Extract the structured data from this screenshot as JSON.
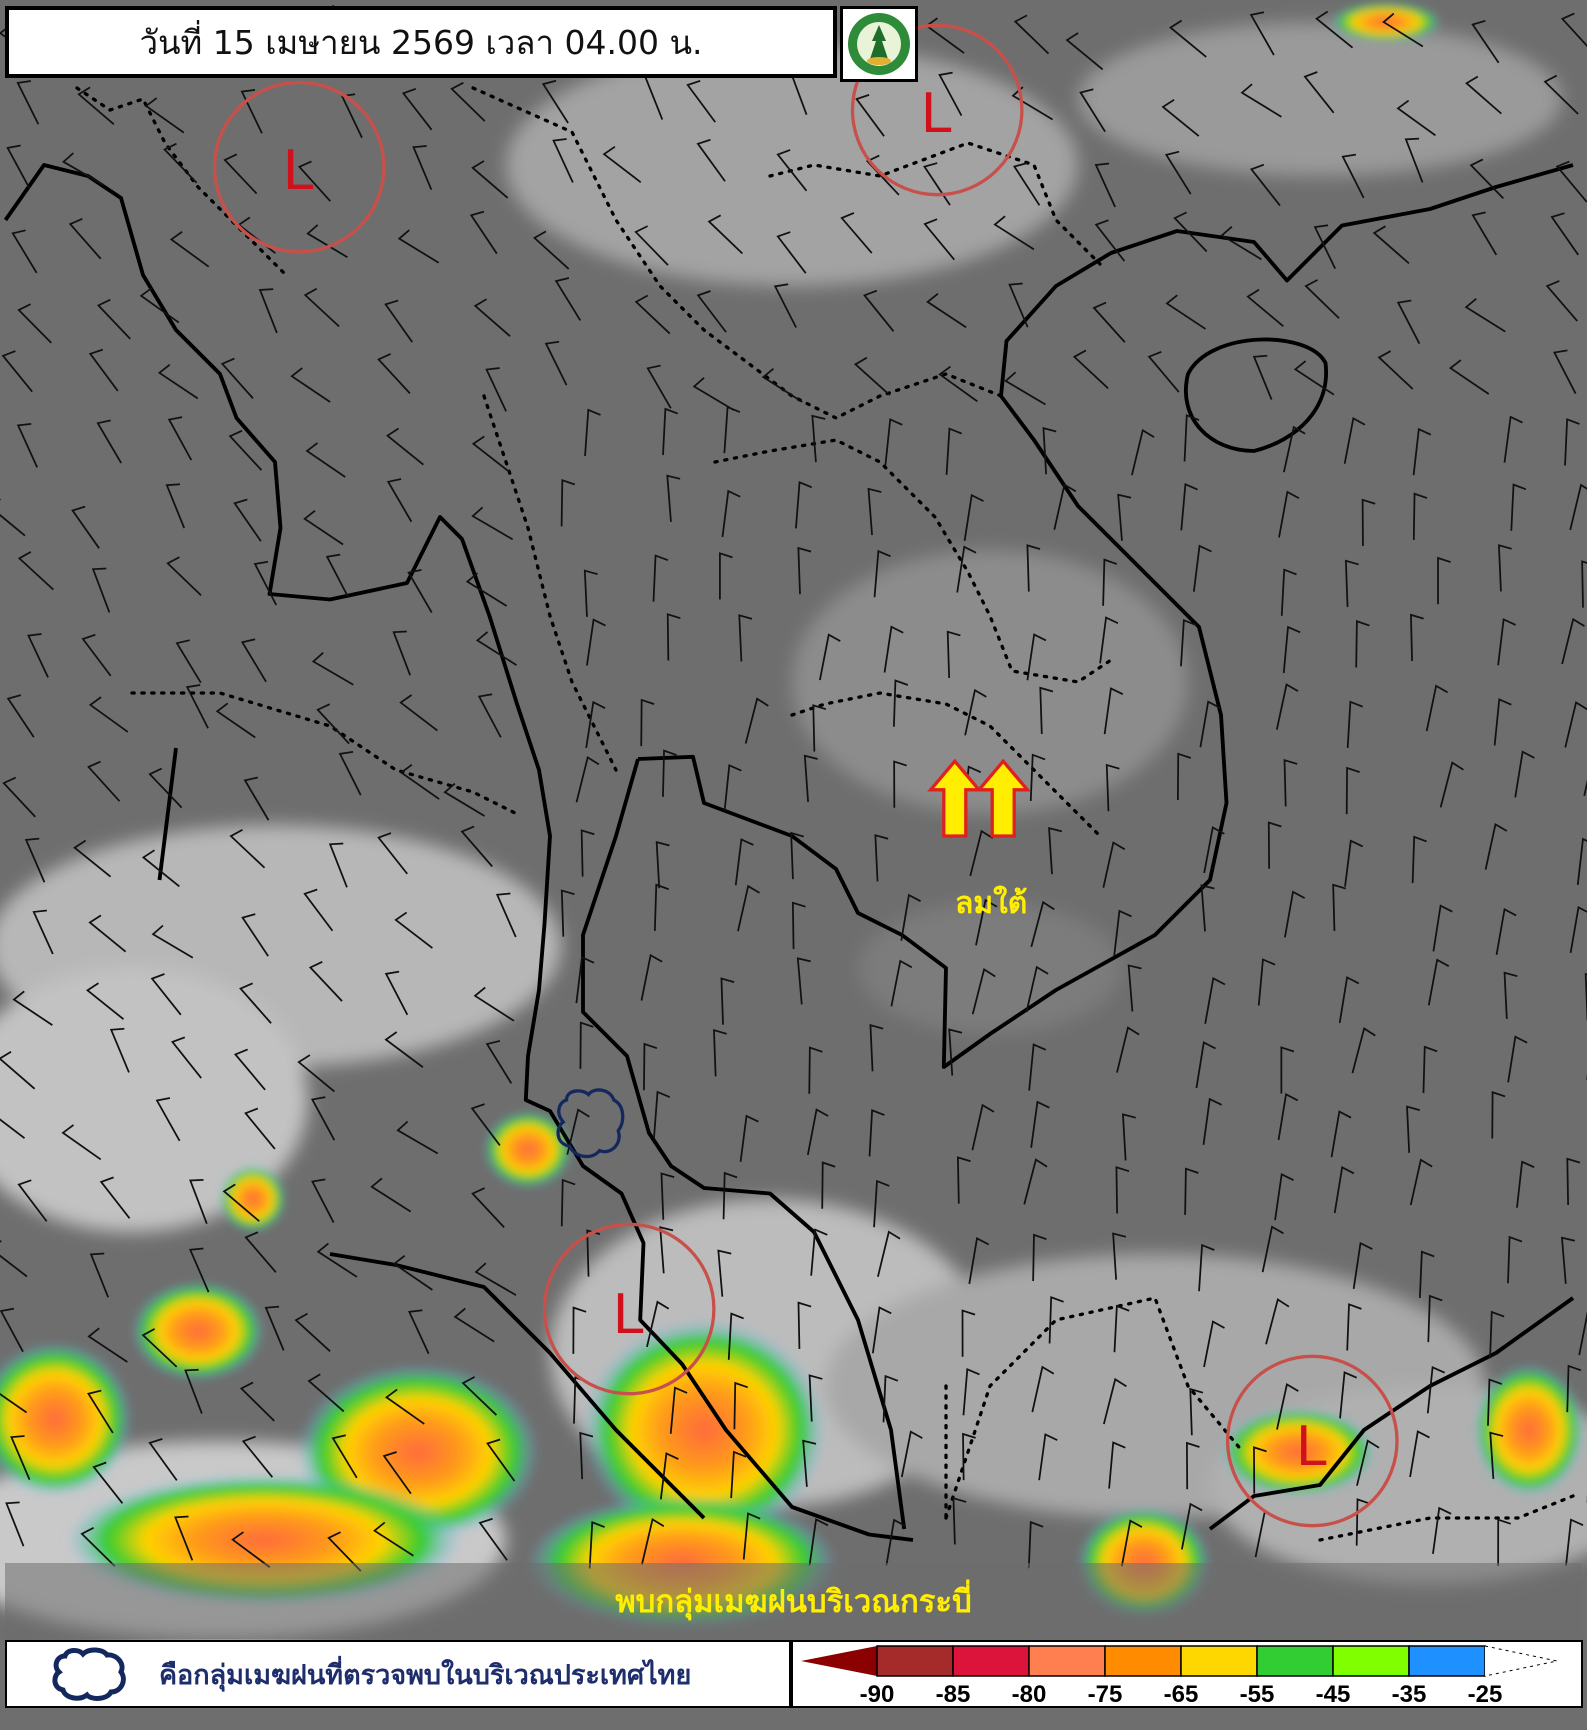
{
  "header": {
    "title": "วันที่ 15 เมษายน 2569 เวลา 04.00 น.",
    "logo": {
      "icon": "tmd-seal-logo",
      "lettering": "กรมอุตุนิยมวิทยา / THAI METEOROLOGICAL DEPARTMENT"
    }
  },
  "map": {
    "low_pressure_label": "L",
    "low_pressure_count": 4,
    "circle_color": "#c8504a",
    "low_label_color": "#d0101a",
    "wind_annotation": "ลมใต้",
    "wind_arrow_color": "#ffee00",
    "wind_arrow_outline": "#e02020",
    "rain_cloud_marker": "cloud-outline-icon"
  },
  "banner": {
    "text": "พบกลุ่มเมฆฝนบริเวณกระบี่"
  },
  "legend": {
    "cloud_icon": "cloud-outline-icon",
    "text": "คือกลุ่มเมฆฝนที่ตรวจพบในบริเวณประเทศไทย"
  },
  "color_scale": {
    "ticks": [
      "-90",
      "-85",
      "-80",
      "-75",
      "-65",
      "-55",
      "-45",
      "-35",
      "-25"
    ],
    "colors": [
      "#8b0000",
      "#a52a2a",
      "#dc143c",
      "#ff7f50",
      "#ff8c00",
      "#ffd700",
      "#32cd32",
      "#7fff00",
      "#1e90ff",
      "#ffffff"
    ]
  }
}
